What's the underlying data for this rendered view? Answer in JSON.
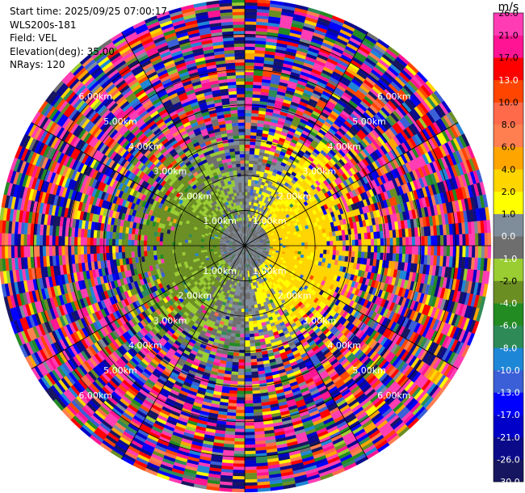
{
  "header": {
    "start_time": "Start time: 2025/09/25 07:00:17",
    "instrument": "WLS200s-181",
    "field": "Field: VEL",
    "elevation": "Elevation(deg): 35.00",
    "nrays": "NRays: 120"
  },
  "chart_data": {
    "type": "heatmap",
    "projection": "polar (PPI)",
    "field": "VEL",
    "elevation_deg": 35.0,
    "n_rays": 120,
    "max_range_km": 7.0,
    "range_rings_km": [
      1.0,
      2.0,
      3.0,
      4.0,
      5.0,
      6.0
    ],
    "range_ring_labels": [
      "1.00km",
      "2.00km",
      "3.00km",
      "4.00km",
      "5.00km",
      "6.00km"
    ],
    "radial_lines_deg": [
      0,
      30,
      60,
      90,
      120,
      150,
      180,
      210,
      240,
      270,
      300,
      330
    ],
    "colorbar": {
      "unit": "m/s",
      "boundaries": [
        -30.0,
        -26.0,
        -21.0,
        -17.0,
        -13.0,
        -10.0,
        -8.0,
        -6.0,
        -4.0,
        -2.0,
        -1.0,
        0.0,
        1.0,
        2.0,
        4.0,
        6.0,
        8.0,
        10.0,
        13.0,
        17.0,
        21.0,
        26.0
      ],
      "tick_labels": [
        "-30.0",
        "-26.0",
        "-21.0",
        "-17.0",
        "-13.0",
        "-10.0",
        "-8.0",
        "-6.0",
        "-4.0",
        "-2.0",
        "-1.0",
        "0.0",
        "1.0",
        "2.0",
        "4.0",
        "6.0",
        "8.0",
        "10.0",
        "13.0",
        "17.0",
        "21.0",
        "26.0"
      ],
      "colors": [
        "#161660",
        "#0b0b8a",
        "#0000c8",
        "#0000ff",
        "#3a5fd6",
        "#1e86d6",
        "#2e8b57",
        "#228b22",
        "#6b8e23",
        "#9acd32",
        "#6e6e6e",
        "#7f8c9a",
        "#ffff00",
        "#ffd500",
        "#ffa500",
        "#ff7f50",
        "#ff6a4a",
        "#ff4500",
        "#ff0000",
        "#ff1493",
        "#ff3cb4"
      ]
    },
    "pattern": {
      "inner_negative_sector": "west (≈ -2 to -1 m/s)",
      "inner_positive_sector": "east (≈ 1 to 4 m/s)",
      "near_center": "≈ 0 to -1 m/s",
      "outer_rings": "noisy, all values -30 to 26 m/s"
    }
  }
}
